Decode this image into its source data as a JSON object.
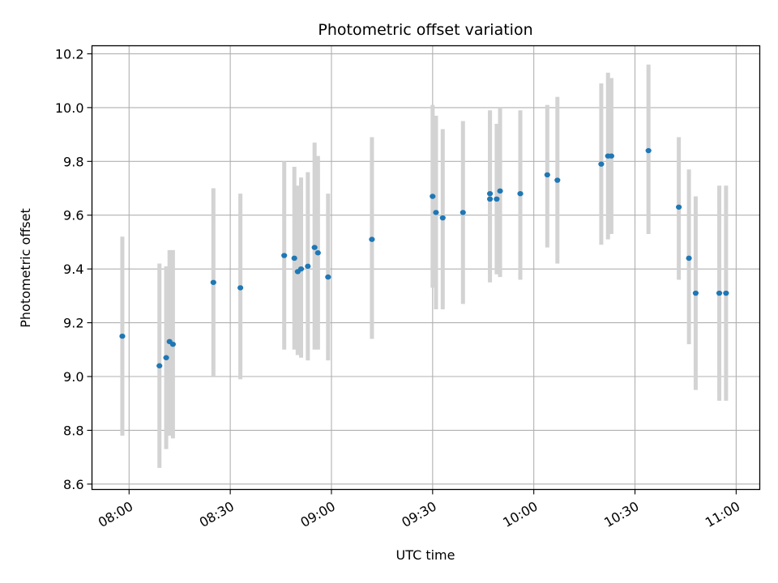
{
  "chart_data": {
    "type": "scatter",
    "title": "Photometric offset variation",
    "xlabel": "UTC time",
    "ylabel": "Photometric offset",
    "x_ticks": [
      "08:00",
      "08:30",
      "09:00",
      "09:30",
      "10:00",
      "10:30",
      "11:00"
    ],
    "y_ticks": [
      "8.6",
      "8.8",
      "9.0",
      "9.2",
      "9.4",
      "9.6",
      "9.8",
      "10.0",
      "10.2"
    ],
    "xlim": [
      "07:49",
      "11:07"
    ],
    "ylim": [
      8.58,
      10.23
    ],
    "grid": true,
    "legend": "none",
    "marker_color": "#1f77b4",
    "errorbar_color": "#d3d3d3",
    "points": [
      {
        "time": "07:58",
        "y": 9.15,
        "ylow": 8.78,
        "yhigh": 9.52
      },
      {
        "time": "08:09",
        "y": 9.04,
        "ylow": 8.66,
        "yhigh": 9.42
      },
      {
        "time": "08:11",
        "y": 9.07,
        "ylow": 8.73,
        "yhigh": 9.41
      },
      {
        "time": "08:12",
        "y": 9.13,
        "ylow": 8.78,
        "yhigh": 9.47
      },
      {
        "time": "08:13",
        "y": 9.12,
        "ylow": 8.77,
        "yhigh": 9.47
      },
      {
        "time": "08:25",
        "y": 9.35,
        "ylow": 9.0,
        "yhigh": 9.7
      },
      {
        "time": "08:33",
        "y": 9.33,
        "ylow": 8.99,
        "yhigh": 9.68
      },
      {
        "time": "08:46",
        "y": 9.45,
        "ylow": 9.1,
        "yhigh": 9.8
      },
      {
        "time": "08:49",
        "y": 9.44,
        "ylow": 9.1,
        "yhigh": 9.78
      },
      {
        "time": "08:50",
        "y": 9.39,
        "ylow": 9.08,
        "yhigh": 9.71
      },
      {
        "time": "08:51",
        "y": 9.4,
        "ylow": 9.07,
        "yhigh": 9.74
      },
      {
        "time": "08:53",
        "y": 9.41,
        "ylow": 9.06,
        "yhigh": 9.76
      },
      {
        "time": "08:55",
        "y": 9.48,
        "ylow": 9.1,
        "yhigh": 9.87
      },
      {
        "time": "08:56",
        "y": 9.46,
        "ylow": 9.1,
        "yhigh": 9.82
      },
      {
        "time": "08:59",
        "y": 9.37,
        "ylow": 9.06,
        "yhigh": 9.68
      },
      {
        "time": "09:12",
        "y": 9.51,
        "ylow": 9.14,
        "yhigh": 9.89
      },
      {
        "time": "09:30",
        "y": 9.67,
        "ylow": 9.33,
        "yhigh": 10.01
      },
      {
        "time": "09:31",
        "y": 9.61,
        "ylow": 9.25,
        "yhigh": 9.97
      },
      {
        "time": "09:33",
        "y": 9.59,
        "ylow": 9.25,
        "yhigh": 9.92
      },
      {
        "time": "09:39",
        "y": 9.61,
        "ylow": 9.27,
        "yhigh": 9.95
      },
      {
        "time": "09:47",
        "y": 9.66,
        "ylow": 9.35,
        "yhigh": 9.98
      },
      {
        "time": "09:47",
        "y": 9.68,
        "ylow": 9.38,
        "yhigh": 9.99
      },
      {
        "time": "09:49",
        "y": 9.66,
        "ylow": 9.38,
        "yhigh": 9.94
      },
      {
        "time": "09:50",
        "y": 9.69,
        "ylow": 9.37,
        "yhigh": 10.0
      },
      {
        "time": "09:56",
        "y": 9.68,
        "ylow": 9.36,
        "yhigh": 9.99
      },
      {
        "time": "10:04",
        "y": 9.75,
        "ylow": 9.48,
        "yhigh": 10.01
      },
      {
        "time": "10:07",
        "y": 9.73,
        "ylow": 9.42,
        "yhigh": 10.04
      },
      {
        "time": "10:20",
        "y": 9.79,
        "ylow": 9.49,
        "yhigh": 10.09
      },
      {
        "time": "10:22",
        "y": 9.82,
        "ylow": 9.51,
        "yhigh": 10.13
      },
      {
        "time": "10:23",
        "y": 9.82,
        "ylow": 9.53,
        "yhigh": 10.11
      },
      {
        "time": "10:34",
        "y": 9.84,
        "ylow": 9.53,
        "yhigh": 10.16
      },
      {
        "time": "10:43",
        "y": 9.63,
        "ylow": 9.36,
        "yhigh": 9.89
      },
      {
        "time": "10:46",
        "y": 9.44,
        "ylow": 9.12,
        "yhigh": 9.77
      },
      {
        "time": "10:48",
        "y": 9.31,
        "ylow": 8.95,
        "yhigh": 9.67
      },
      {
        "time": "10:55",
        "y": 9.31,
        "ylow": 8.91,
        "yhigh": 9.71
      },
      {
        "time": "10:57",
        "y": 9.31,
        "ylow": 8.91,
        "yhigh": 9.71
      }
    ]
  }
}
